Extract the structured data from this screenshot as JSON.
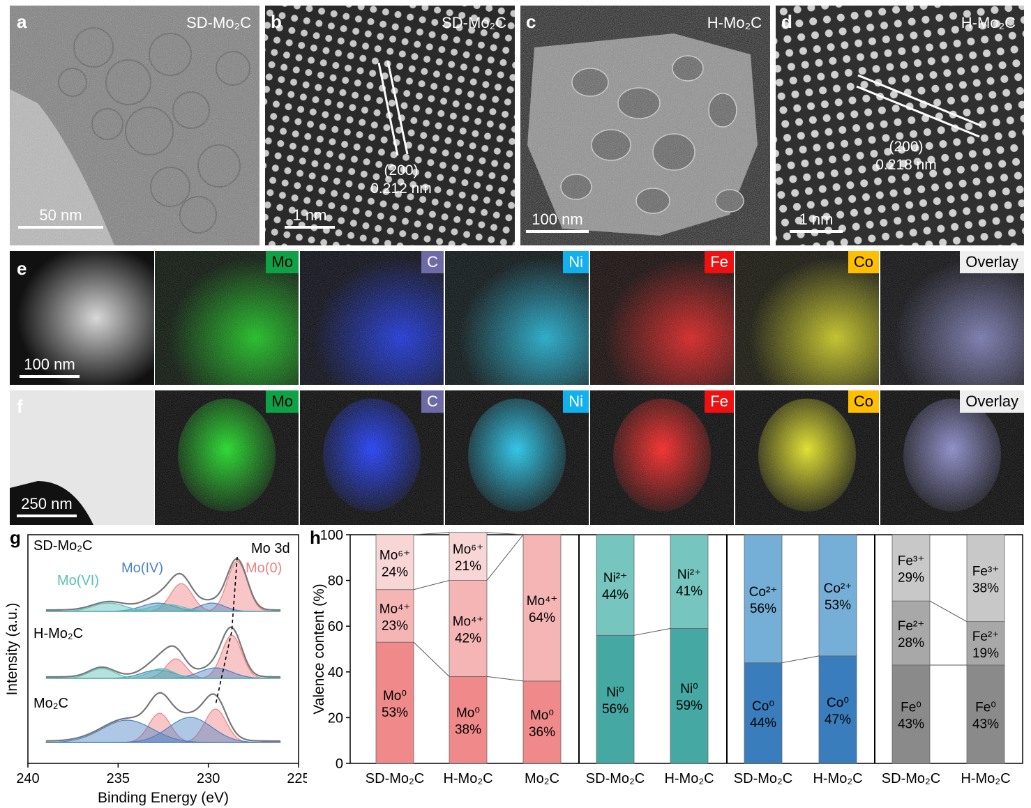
{
  "panels": {
    "a": {
      "label": "a",
      "material": "SD-Mo₂C",
      "scale": "50 nm"
    },
    "b": {
      "label": "b",
      "material": "SD-Mo₂C",
      "scale": "1 nm",
      "plane": "(200)",
      "spacing": "0.212 nm"
    },
    "c": {
      "label": "c",
      "material": "H-Mo₂C",
      "scale": "100 nm"
    },
    "d": {
      "label": "d",
      "material": "H-Mo₂C",
      "scale": "1 nm",
      "plane": "(200)",
      "spacing": "0.218 nm"
    },
    "e": {
      "label": "e",
      "scale": "100 nm"
    },
    "f": {
      "label": "f",
      "scale": "250 nm"
    },
    "g": {
      "label": "g"
    },
    "h": {
      "label": "h"
    }
  },
  "eds_elements": [
    {
      "name": "Mo",
      "tag_color": "#0fa146",
      "tag_text_color": "#000000",
      "map_color": "#12e01a"
    },
    {
      "name": "C",
      "tag_color": "#6d6aa5",
      "tag_text_color": "#ffffff",
      "map_color": "#1433ff"
    },
    {
      "name": "Ni",
      "tag_color": "#12b1ee",
      "tag_text_color": "#ffffff",
      "map_color": "#18c8f0"
    },
    {
      "name": "Fe",
      "tag_color": "#ee1111",
      "tag_text_color": "#ffffff",
      "map_color": "#ff1a1a"
    },
    {
      "name": "Co",
      "tag_color": "#ffbf00",
      "tag_text_color": "#000000",
      "map_color": "#e8e81a"
    },
    {
      "name": "Overlay",
      "tag_color": "#eeeeee",
      "tag_text_color": "#000000",
      "map_color": "#8888cc"
    }
  ],
  "chart_data": [
    {
      "type": "line",
      "panel": "g",
      "xlabel": "Binding Energy (eV)",
      "ylabel": "Intensity (a.u.)",
      "xlim": [
        240,
        225
      ],
      "xticks": [
        240,
        235,
        230,
        225
      ],
      "annotations": [
        "Mo 3d",
        "Mo(VI)",
        "Mo(IV)",
        "Mo(0)"
      ],
      "annotation_colors": {
        "Mo(VI)": "#5bbfb6",
        "Mo(IV)": "#4c82c4",
        "Mo(0)": "#ef8080"
      },
      "samples": [
        {
          "name": "SD-Mo₂C",
          "mo0_peak": 228.4
        },
        {
          "name": "H-Mo₂C",
          "mo0_peak": 228.7
        },
        {
          "name": "Mo₂C",
          "mo0_peak": 229.6
        }
      ]
    },
    {
      "type": "bar",
      "panel": "h",
      "stacked": true,
      "ylabel": "Valence content (%)",
      "ylim": [
        0,
        100
      ],
      "yticks": [
        0,
        20,
        40,
        60,
        80,
        100
      ],
      "groups": [
        {
          "element": "Mo",
          "categories": [
            "SD-Mo₂C",
            "H-Mo₂C",
            "Mo₂C"
          ],
          "series": [
            {
              "name": "Mo⁰",
              "values": [
                53,
                38,
                36
              ],
              "color": "#f08a8a"
            },
            {
              "name": "Mo⁴⁺",
              "values": [
                23,
                42,
                64
              ],
              "color": "#f5b5b5"
            },
            {
              "name": "Mo⁶⁺",
              "values": [
                24,
                21,
                0
              ],
              "color": "#f8d6d6"
            }
          ],
          "labels": [
            [
              "Mo⁰ 53%",
              "Mo⁴⁺ 23%",
              "Mo⁶⁺ 24%"
            ],
            [
              "Mo⁰ 38%",
              "Mo⁴⁺ 42%",
              "Mo⁶⁺ 21%"
            ],
            [
              "Mo⁰ 36%",
              "Mo⁴⁺ 64%",
              ""
            ]
          ]
        },
        {
          "element": "Ni",
          "categories": [
            "SD-Mo₂C",
            "H-Mo₂C"
          ],
          "series": [
            {
              "name": "Ni⁰",
              "values": [
                56,
                59
              ],
              "color": "#45a8a3"
            },
            {
              "name": "Ni²⁺",
              "values": [
                44,
                41
              ],
              "color": "#76c5bf"
            }
          ],
          "labels": [
            [
              "Ni⁰ 56%",
              "Ni²⁺ 44%"
            ],
            [
              "Ni⁰ 59%",
              "Ni²⁺ 41%"
            ]
          ]
        },
        {
          "element": "Co",
          "categories": [
            "SD-Mo₂C",
            "H-Mo₂C"
          ],
          "series": [
            {
              "name": "Co⁰",
              "values": [
                44,
                47
              ],
              "color": "#3a7dbd"
            },
            {
              "name": "Co²⁺",
              "values": [
                56,
                53
              ],
              "color": "#75aed6"
            }
          ],
          "labels": [
            [
              "Co⁰ 44%",
              "Co²⁺ 56%"
            ],
            [
              "Co⁰ 47%",
              "Co²⁺ 53%"
            ]
          ]
        },
        {
          "element": "Fe",
          "categories": [
            "SD-Mo₂C",
            "H-Mo₂C"
          ],
          "series": [
            {
              "name": "Fe⁰",
              "values": [
                43,
                43
              ],
              "color": "#8a8a8a"
            },
            {
              "name": "Fe²⁺",
              "values": [
                28,
                19
              ],
              "color": "#a8a8a8"
            },
            {
              "name": "Fe³⁺",
              "values": [
                29,
                38
              ],
              "color": "#c8c8c8"
            }
          ],
          "labels": [
            [
              "Fe⁰ 43%",
              "Fe²⁺ 28%",
              "Fe³⁺ 29%"
            ],
            [
              "Fe⁰ 43%",
              "Fe²⁺ 19%",
              "Fe³⁺ 38%"
            ]
          ]
        }
      ]
    }
  ]
}
